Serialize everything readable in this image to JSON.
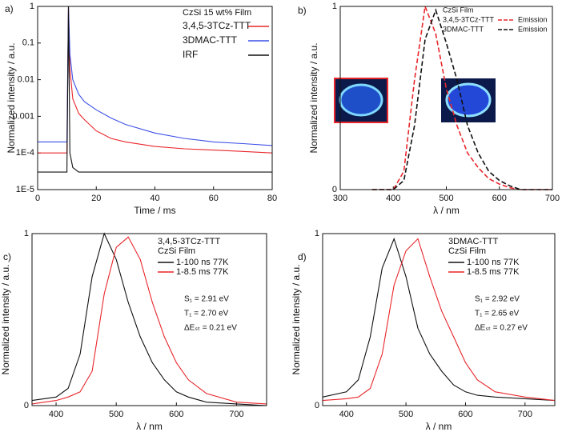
{
  "chart_data": [
    {
      "type": "line",
      "label": "a)",
      "title": "CzSi 15 wt% Film",
      "xlabel": "Time / ms",
      "ylabel": "Normalized intensity / a.u.",
      "log_y": true,
      "xlim": [
        0,
        80
      ],
      "xticks": [
        0,
        20,
        40,
        60,
        80
      ],
      "ylim": [
        1e-05,
        1
      ],
      "yticks": [
        {
          "value": 1e-05,
          "label": "1E-5"
        },
        {
          "value": 0.0001,
          "label": "1E-4"
        },
        0.001,
        0.01,
        0.1,
        1
      ],
      "x": [
        0,
        5,
        10,
        10.5,
        11,
        12,
        14,
        16,
        20,
        25,
        30,
        40,
        50,
        60,
        70,
        80
      ],
      "series": [
        {
          "name": "3,4,5-3TCz-TTT",
          "color": "#e8262b",
          "values": [
            0.0001,
            0.0001,
            0.0001,
            1,
            0.02,
            0.003,
            0.0012,
            0.0008,
            0.0004,
            0.00025,
            0.0002,
            0.00015,
            0.00013,
            0.00012,
            0.00011,
            0.0001
          ]
        },
        {
          "name": "3DMAC-TTT",
          "color": "#3c50e6",
          "values": [
            0.0002,
            0.0002,
            0.0002,
            1,
            0.05,
            0.01,
            0.004,
            0.0025,
            0.0015,
            0.0009,
            0.0006,
            0.00035,
            0.00025,
            0.0002,
            0.00018,
            0.00016
          ]
        },
        {
          "name": "IRF",
          "color": "#111111",
          "values": [
            3e-05,
            3e-05,
            3e-05,
            1,
            0.0001,
            4e-05,
            3e-05,
            3e-05,
            3e-05,
            3e-05,
            3e-05,
            3e-05,
            3e-05,
            3e-05,
            3e-05,
            3e-05
          ]
        }
      ]
    },
    {
      "type": "line",
      "label": "b)",
      "title": "CzSi Film",
      "xlabel": "λ / nm",
      "ylabel": "Normalized intensity / a.u.",
      "dashed": true,
      "xlim": [
        300,
        700
      ],
      "xticks": [
        300,
        400,
        500,
        600,
        700
      ],
      "ylim": [
        0,
        1
      ],
      "yticks": [
        0,
        1
      ],
      "x": [
        360,
        380,
        400,
        420,
        440,
        460,
        480,
        500,
        520,
        540,
        560,
        580,
        600,
        620,
        640,
        660,
        700
      ],
      "series": [
        {
          "name": "Emission",
          "label": "3,4,5-3TCz-TTT",
          "color": "#e8262b",
          "values": [
            0,
            0,
            0,
            0.1,
            0.6,
            1,
            0.85,
            0.55,
            0.35,
            0.2,
            0.12,
            0.06,
            0.03,
            0.01,
            0,
            0,
            0
          ]
        },
        {
          "name": "Emission",
          "label": "3DMAC-TTT",
          "color": "#111111",
          "values": [
            0,
            0,
            0,
            0.05,
            0.35,
            0.82,
            0.98,
            0.8,
            0.6,
            0.35,
            0.2,
            0.1,
            0.05,
            0.02,
            0,
            0,
            0
          ]
        }
      ]
    },
    {
      "type": "line",
      "label": "c)",
      "title": "3,4,5-3TCz-TTT",
      "subtitle": "CzSi Film",
      "xlabel": "λ / nm",
      "ylabel": "Normalized intensity / a.u.",
      "annotations": [
        "S₁ = 2.91 eV",
        "T₁ = 2.70 eV",
        "ΔEₛₜ = 0.21 eV"
      ],
      "xlim": [
        360,
        750
      ],
      "xticks": [
        400,
        500,
        600,
        700
      ],
      "ylim": [
        0,
        1
      ],
      "yticks": [
        0,
        1
      ],
      "x": [
        360,
        400,
        420,
        440,
        460,
        480,
        500,
        520,
        540,
        560,
        580,
        600,
        620,
        650,
        700,
        750
      ],
      "series": [
        {
          "name": "1-100 ns 77K",
          "color": "#111111",
          "values": [
            0.03,
            0.05,
            0.1,
            0.3,
            0.75,
            1,
            0.85,
            0.6,
            0.4,
            0.25,
            0.15,
            0.08,
            0.05,
            0.02,
            0.01,
            0
          ]
        },
        {
          "name": "1-8.5 ms 77K",
          "color": "#e8262b",
          "values": [
            0.01,
            0.03,
            0.05,
            0.08,
            0.2,
            0.65,
            0.92,
            0.98,
            0.85,
            0.6,
            0.4,
            0.25,
            0.15,
            0.07,
            0.02,
            0.01
          ]
        }
      ]
    },
    {
      "type": "line",
      "label": "d)",
      "title": "3DMAC-TTT",
      "subtitle": "CzSi Film",
      "xlabel": "λ / nm",
      "ylabel": "Normalized intensity / a.u.",
      "annotations": [
        "S₁ = 2.92 eV",
        "T₁ = 2.65 eV",
        "ΔEₛₜ = 0.27 eV"
      ],
      "xlim": [
        360,
        750
      ],
      "xticks": [
        400,
        500,
        600,
        700
      ],
      "ylim": [
        0,
        1
      ],
      "yticks": [
        0,
        1
      ],
      "x": [
        360,
        400,
        420,
        440,
        460,
        480,
        500,
        520,
        540,
        560,
        580,
        600,
        620,
        650,
        700,
        750
      ],
      "series": [
        {
          "name": "1-100 ns 77K",
          "color": "#111111",
          "values": [
            0.05,
            0.08,
            0.15,
            0.4,
            0.8,
            0.97,
            0.75,
            0.45,
            0.3,
            0.2,
            0.12,
            0.08,
            0.06,
            0.05,
            0.04,
            0.03
          ]
        },
        {
          "name": "1-8.5 ms 77K",
          "color": "#e8262b",
          "values": [
            0.03,
            0.04,
            0.05,
            0.1,
            0.3,
            0.7,
            0.9,
            0.97,
            0.75,
            0.55,
            0.4,
            0.25,
            0.15,
            0.08,
            0.05,
            0.03
          ]
        }
      ]
    }
  ]
}
